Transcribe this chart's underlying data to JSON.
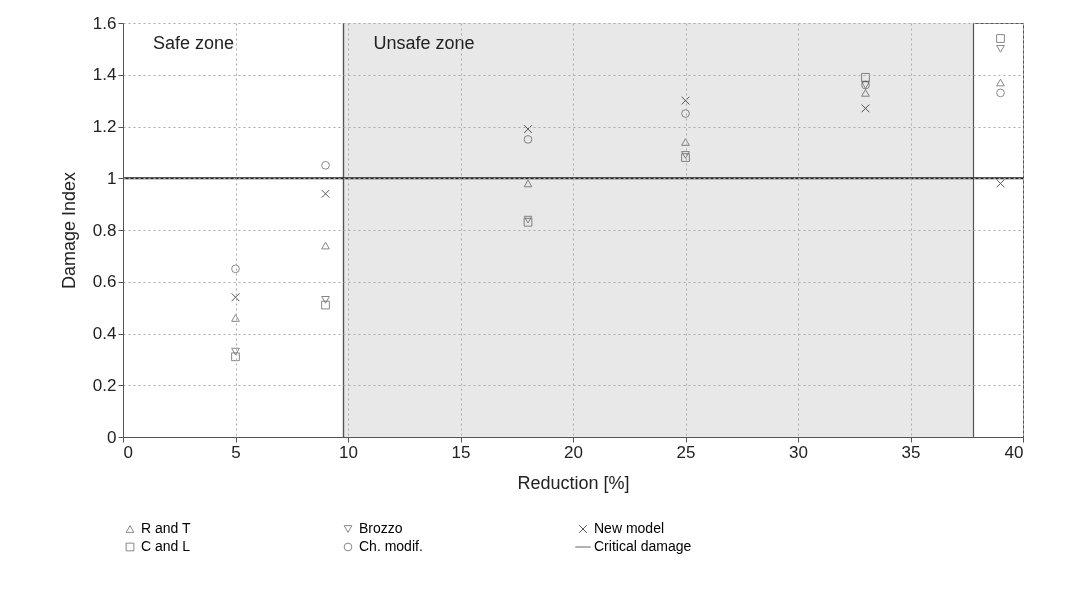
{
  "chart_data": {
    "type": "scatter",
    "xlabel": "Reduction [%]",
    "ylabel": "Damage Index",
    "x": [
      5,
      9,
      18,
      25,
      33,
      39
    ],
    "series": [
      {
        "name": "R and T",
        "color": "#555555",
        "marker": "triangle",
        "values": [
          0.46,
          0.74,
          0.98,
          1.14,
          1.33,
          1.37
        ]
      },
      {
        "name": "C and L",
        "color": "#555555",
        "marker": "square",
        "values": [
          0.31,
          0.51,
          0.83,
          1.08,
          1.39,
          1.54
        ]
      },
      {
        "name": "Brozzo",
        "color": "#555555",
        "marker": "triangle-down",
        "values": [
          0.33,
          0.53,
          0.84,
          1.09,
          1.36,
          1.5
        ]
      },
      {
        "name": "Ch. modif.",
        "color": "#555555",
        "marker": "circle",
        "values": [
          0.65,
          1.05,
          1.15,
          1.25,
          1.36,
          1.33
        ]
      },
      {
        "name": "New model",
        "color": "#111111",
        "marker": "cross",
        "values": [
          0.54,
          0.94,
          1.19,
          1.3,
          1.27,
          0.98
        ]
      }
    ],
    "xlim": [
      0,
      40
    ],
    "xticks": [
      0,
      5,
      10,
      15,
      20,
      25,
      30,
      35,
      40
    ],
    "ylim": [
      0,
      1.6
    ],
    "yticks": [
      0,
      0.2,
      0.4,
      0.6,
      0.8,
      1,
      1.2,
      1.4,
      1.6
    ],
    "ref_lines": [
      {
        "axis": "y",
        "value": 1,
        "label": "Critical damage",
        "color": "#222222"
      }
    ],
    "bands": [
      {
        "axis": "x",
        "from": 0,
        "to": 9.8,
        "label": "Safe zone",
        "color": "#ffffff"
      },
      {
        "axis": "x",
        "from": 9.8,
        "to": 37.8,
        "label": "Unsafe zone",
        "color": "#e8e8e8"
      }
    ],
    "grid": true,
    "legend": "bottom"
  }
}
